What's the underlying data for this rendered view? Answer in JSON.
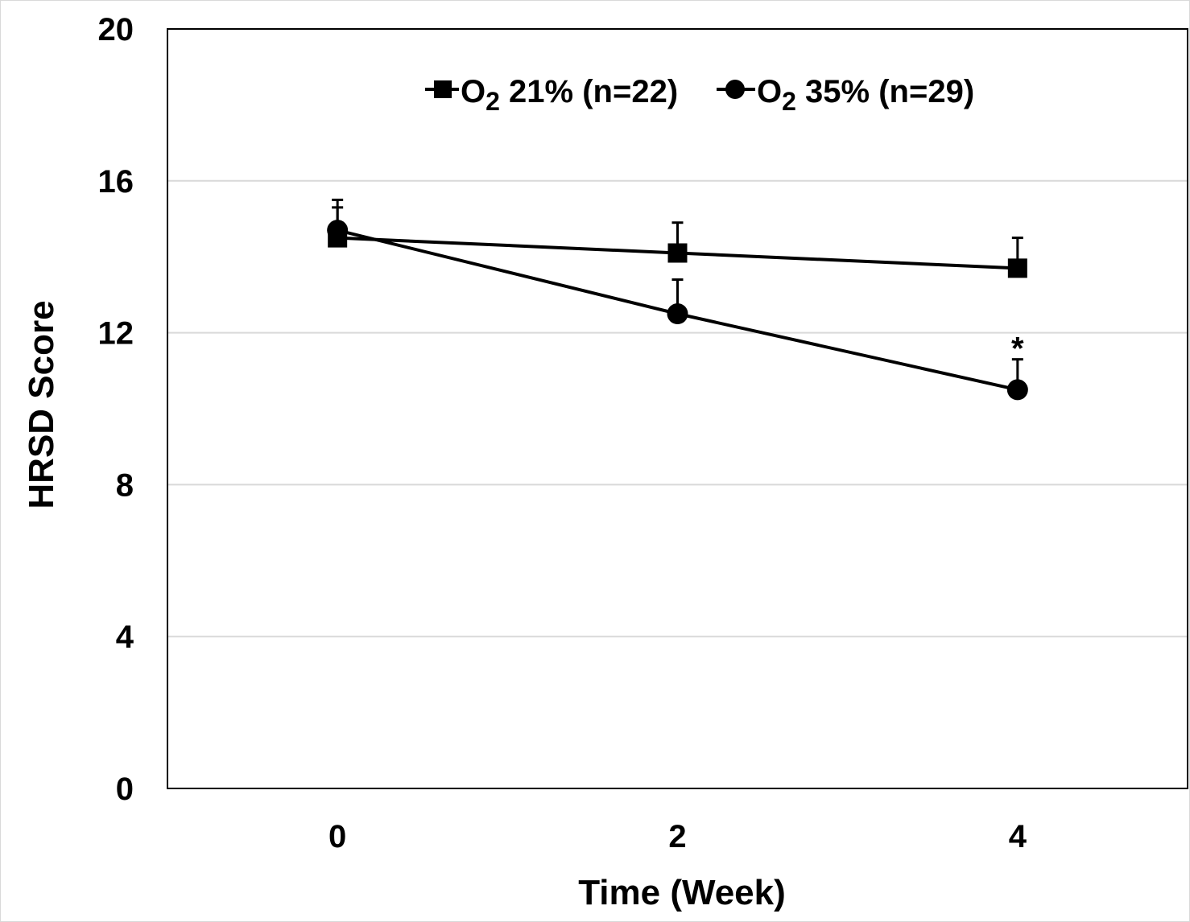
{
  "chart_data": {
    "type": "line",
    "xlabel": "Time (Week)",
    "ylabel": "HRSD Score",
    "x": [
      0,
      2,
      4
    ],
    "x_ticks": [
      "0",
      "2",
      "4"
    ],
    "xlim": [
      -1,
      5
    ],
    "ylim": [
      0,
      20
    ],
    "y_ticks": [
      "0",
      "4",
      "8",
      "12",
      "16",
      "20"
    ],
    "grid": "horizontal",
    "legend": "top-center",
    "series": [
      {
        "name_main": "O",
        "name_sub": "2",
        "name_rest": " 21% (n=22)",
        "marker": "square",
        "color": "#000000",
        "values": [
          14.5,
          14.1,
          13.7
        ],
        "error_upper": [
          0.8,
          0.8,
          0.8
        ]
      },
      {
        "name_main": "O",
        "name_sub": "2",
        "name_rest": " 35% (n=29)",
        "marker": "circle",
        "color": "#000000",
        "values": [
          14.7,
          12.5,
          10.5
        ],
        "error_upper": [
          0.8,
          0.9,
          0.8
        ]
      }
    ],
    "annotations": [
      {
        "text": "*",
        "x": 4,
        "y": 11.6
      }
    ]
  }
}
